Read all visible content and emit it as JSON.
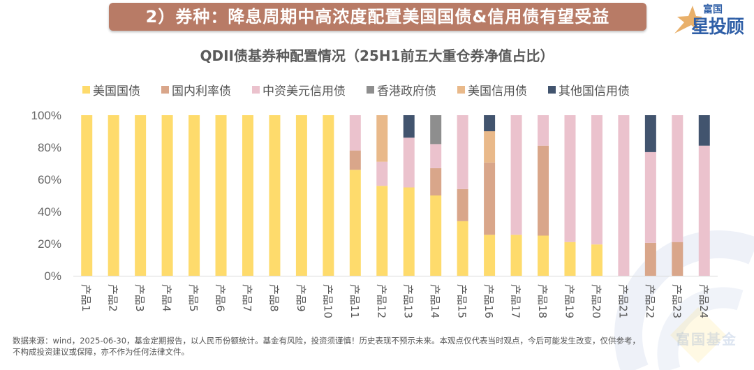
{
  "header": {
    "banner_title": "2）券种：降息周期中高浓度配置美国国债&信用债有望受益",
    "logo_small": "富国",
    "logo_big": "星投顾",
    "watermark_text": "富国基金"
  },
  "colors": {
    "banner": "#b87b66",
    "us_treasury": "#fedb6c",
    "domestic_rate": "#d9a68a",
    "china_usd_credit": "#ebc2cd",
    "hk_gov": "#8e8e8e",
    "us_credit": "#e9b98a",
    "other_credit": "#42546e"
  },
  "chart_data": {
    "type": "bar",
    "stacked": true,
    "title": "QDII债基券种配置情况（25H1前五大重仓券净值占比）",
    "xlabel": "",
    "ylabel": "",
    "ylim": [
      0,
      100
    ],
    "yticks": [
      "0%",
      "20%",
      "40%",
      "60%",
      "80%",
      "100%"
    ],
    "legend_position": "top",
    "grid": false,
    "categories": [
      "产品1",
      "产品2",
      "产品3",
      "产品4",
      "产品5",
      "产品6",
      "产品7",
      "产品8",
      "产品9",
      "产品10",
      "产品11",
      "产品12",
      "产品13",
      "产品14",
      "产品15",
      "产品16",
      "产品17",
      "产品18",
      "产品19",
      "产品20",
      "产品21",
      "产品22",
      "产品23",
      "产品24"
    ],
    "series": [
      {
        "name": "美国国债",
        "color_key": "us_treasury",
        "values": [
          100,
          100,
          100,
          100,
          100,
          100,
          100,
          100,
          100,
          100,
          66,
          56,
          55,
          50,
          34,
          25.5,
          25.5,
          25,
          21,
          19.5,
          0,
          0,
          0,
          0
        ]
      },
      {
        "name": "国内利率债",
        "color_key": "domestic_rate",
        "values": [
          0,
          0,
          0,
          0,
          0,
          0,
          0,
          0,
          0,
          0,
          12,
          0,
          0,
          17,
          20,
          45,
          0,
          56,
          0,
          0,
          0,
          20.5,
          21,
          0
        ]
      },
      {
        "name": "中资美元信用债",
        "color_key": "china_usd_credit",
        "values": [
          0,
          0,
          0,
          0,
          0,
          0,
          0,
          0,
          0,
          0,
          22,
          15,
          31,
          15,
          46,
          0,
          74.5,
          19,
          79,
          80.5,
          100,
          56.5,
          79,
          81
        ]
      },
      {
        "name": "香港政府债",
        "color_key": "hk_gov",
        "values": [
          0,
          0,
          0,
          0,
          0,
          0,
          0,
          0,
          0,
          0,
          0,
          0,
          0,
          18,
          0,
          0,
          0,
          0,
          0,
          0,
          0,
          0,
          0,
          0
        ]
      },
      {
        "name": "美国信用债",
        "color_key": "us_credit",
        "values": [
          0,
          0,
          0,
          0,
          0,
          0,
          0,
          0,
          0,
          0,
          0,
          29,
          0,
          0,
          0,
          19.5,
          0,
          0,
          0,
          0,
          0,
          0,
          0,
          0
        ]
      },
      {
        "name": "其他国信用债",
        "color_key": "other_credit",
        "values": [
          0,
          0,
          0,
          0,
          0,
          0,
          0,
          0,
          0,
          0,
          0,
          0,
          14,
          0,
          0,
          10,
          0,
          0,
          0,
          0,
          0,
          23,
          0,
          19
        ]
      }
    ]
  },
  "footnote": {
    "line1": "数据来源：wind，2025-06-30，基金定期报告，以人民币份额统计。基金有风险，投资须谨慎！历史表现不预示未来。本观点仅代表当时观点，今后可能发生改变，仅供参考，",
    "line2": "不构成投资建议或保障，亦不作为任何法律文件。"
  }
}
